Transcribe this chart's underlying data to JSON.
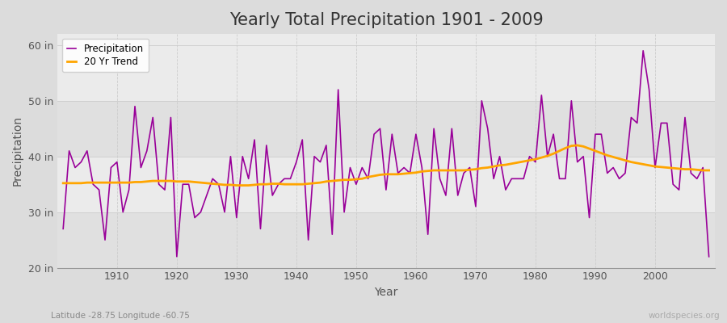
{
  "title": "Yearly Total Precipitation 1901 - 2009",
  "xlabel": "Year",
  "ylabel": "Precipitation",
  "subtitle": "Latitude -28.75 Longitude -60.75",
  "watermark": "worldspecies.org",
  "years": [
    1901,
    1902,
    1903,
    1904,
    1905,
    1906,
    1907,
    1908,
    1909,
    1910,
    1911,
    1912,
    1913,
    1914,
    1915,
    1916,
    1917,
    1918,
    1919,
    1920,
    1921,
    1922,
    1923,
    1924,
    1925,
    1926,
    1927,
    1928,
    1929,
    1930,
    1931,
    1932,
    1933,
    1934,
    1935,
    1936,
    1937,
    1938,
    1939,
    1940,
    1941,
    1942,
    1943,
    1944,
    1945,
    1946,
    1947,
    1948,
    1949,
    1950,
    1951,
    1952,
    1953,
    1954,
    1955,
    1956,
    1957,
    1958,
    1959,
    1960,
    1961,
    1962,
    1963,
    1964,
    1965,
    1966,
    1967,
    1968,
    1969,
    1970,
    1971,
    1972,
    1973,
    1974,
    1975,
    1976,
    1977,
    1978,
    1979,
    1980,
    1981,
    1982,
    1983,
    1984,
    1985,
    1986,
    1987,
    1988,
    1989,
    1990,
    1991,
    1992,
    1993,
    1994,
    1995,
    1996,
    1997,
    1998,
    1999,
    2000,
    2001,
    2002,
    2003,
    2004,
    2005,
    2006,
    2007,
    2008,
    2009
  ],
  "precip": [
    27,
    41,
    38,
    39,
    41,
    35,
    34,
    25,
    38,
    39,
    30,
    34,
    49,
    38,
    41,
    47,
    35,
    34,
    47,
    22,
    35,
    35,
    29,
    30,
    33,
    36,
    35,
    30,
    40,
    29,
    40,
    36,
    43,
    27,
    42,
    33,
    35,
    36,
    36,
    39,
    43,
    25,
    40,
    39,
    42,
    26,
    52,
    30,
    38,
    35,
    38,
    36,
    44,
    45,
    34,
    44,
    37,
    38,
    37,
    44,
    38,
    26,
    45,
    36,
    33,
    45,
    33,
    37,
    38,
    31,
    50,
    45,
    36,
    40,
    34,
    36,
    36,
    36,
    40,
    39,
    51,
    40,
    44,
    36,
    36,
    50,
    39,
    40,
    29,
    44,
    44,
    37,
    38,
    36,
    37,
    47,
    46,
    59,
    52,
    38,
    46,
    46,
    35,
    34,
    47,
    37,
    36,
    38,
    22
  ],
  "trend": [
    35.2,
    35.2,
    35.2,
    35.2,
    35.3,
    35.3,
    35.3,
    35.3,
    35.3,
    35.3,
    35.3,
    35.3,
    35.4,
    35.4,
    35.5,
    35.6,
    35.6,
    35.6,
    35.6,
    35.5,
    35.5,
    35.5,
    35.4,
    35.3,
    35.2,
    35.1,
    35.0,
    34.9,
    34.9,
    34.8,
    34.8,
    34.8,
    34.9,
    35.0,
    35.0,
    35.1,
    35.1,
    35.0,
    35.0,
    35.0,
    35.0,
    35.1,
    35.2,
    35.3,
    35.5,
    35.6,
    35.7,
    35.8,
    35.8,
    35.9,
    36.0,
    36.3,
    36.5,
    36.7,
    36.8,
    36.8,
    36.8,
    36.9,
    37.0,
    37.1,
    37.3,
    37.4,
    37.5,
    37.5,
    37.5,
    37.5,
    37.5,
    37.5,
    37.6,
    37.7,
    37.9,
    38.0,
    38.2,
    38.4,
    38.5,
    38.7,
    38.9,
    39.1,
    39.3,
    39.5,
    39.8,
    40.1,
    40.5,
    41.0,
    41.5,
    41.9,
    42.0,
    41.8,
    41.4,
    41.0,
    40.6,
    40.2,
    39.9,
    39.6,
    39.3,
    39.0,
    38.8,
    38.6,
    38.4,
    38.2,
    38.1,
    38.0,
    37.9,
    37.8,
    37.7,
    37.7,
    37.6,
    37.5,
    37.5
  ],
  "precip_color": "#990099",
  "trend_color": "#FFA500",
  "bg_color": "#DCDCDC",
  "plot_bg_color_light": "#EBEBEB",
  "plot_bg_color_dark": "#E0E0E0",
  "ylim": [
    20,
    62
  ],
  "yticks": [
    20,
    30,
    40,
    50,
    60
  ],
  "ytick_labels": [
    "20 in",
    "30 in",
    "40 in",
    "50 in",
    "60 in"
  ],
  "xticks": [
    1910,
    1920,
    1930,
    1940,
    1950,
    1960,
    1970,
    1980,
    1990,
    2000
  ],
  "xlim": [
    1900,
    2010
  ],
  "grid_color_h": "#CCCCCC",
  "grid_color_v": "#CCCCCC",
  "title_fontsize": 15,
  "axis_label_fontsize": 10,
  "tick_label_fontsize": 9
}
